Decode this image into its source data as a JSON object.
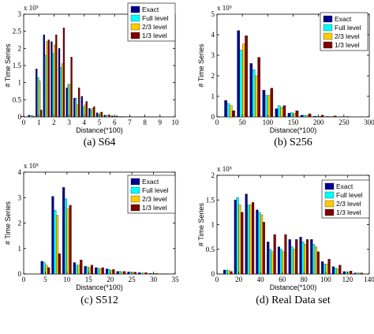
{
  "legend": [
    "Exact",
    "Full level",
    "2/3 level",
    "1/3 level"
  ],
  "colors": [
    "#00008f",
    "#00ffff",
    "#ffcc00",
    "#800000"
  ],
  "footer_text": "",
  "chart_data": [
    {
      "type": "bar",
      "caption": "(a) S64",
      "xlabel": "Distance(*100)",
      "ylabel": "# Time Series",
      "exponent": "x 10⁵",
      "xlim": [
        0,
        10
      ],
      "ylim": [
        0,
        3
      ],
      "xticks": [
        0,
        1,
        2,
        3,
        4,
        5,
        6,
        7,
        8,
        9,
        10
      ],
      "yticks": [
        0,
        0.5,
        1,
        1.5,
        2,
        2.5,
        3
      ],
      "x": [
        0,
        0.5,
        1,
        1.5,
        2,
        2.5,
        3,
        3.5,
        4,
        4.5,
        5,
        5.5,
        6,
        6.5,
        7,
        7.5,
        8,
        8.5,
        9,
        9.5
      ],
      "series": [
        {
          "name": "Exact",
          "values": [
            0.02,
            0.05,
            1.4,
            2.4,
            2.2,
            2.0,
            0.85,
            0.55,
            0.6,
            0.25,
            0.12,
            0.05,
            0.03,
            0.01,
            0.005,
            0.003,
            0.002,
            0.001,
            0.001,
            0
          ]
        },
        {
          "name": "Full level",
          "values": [
            0.01,
            0.04,
            1.15,
            1.8,
            1.85,
            1.45,
            0.95,
            0.55,
            0.3,
            0.2,
            0.08,
            0.04,
            0.02,
            0.01,
            0.005,
            0.003,
            0.002,
            0.001,
            0.001,
            0
          ]
        },
        {
          "name": "2/3 level",
          "values": [
            0.01,
            0.04,
            1.05,
            2.2,
            2.1,
            1.55,
            0.95,
            0.35,
            0.35,
            0.25,
            0.12,
            0.05,
            0.02,
            0.01,
            0.005,
            0.003,
            0.002,
            0.001,
            0.001,
            0
          ]
        },
        {
          "name": "1/3 level",
          "values": [
            0,
            0.02,
            0.2,
            2.25,
            2.4,
            2.6,
            1.75,
            0.85,
            0.45,
            0.3,
            0.14,
            0.06,
            0.03,
            0.01,
            0.005,
            0.003,
            0.002,
            0.001,
            0.001,
            0
          ]
        }
      ]
    },
    {
      "type": "bar",
      "caption": "(b) S256",
      "xlabel": "Distance(*100)",
      "ylabel": "# Time Series",
      "exponent": "x 10⁵",
      "xlim": [
        0,
        300
      ],
      "ylim": [
        0,
        5
      ],
      "xticks": [
        0,
        50,
        100,
        150,
        200,
        250,
        300
      ],
      "yticks": [
        0,
        1,
        2,
        3,
        4,
        5
      ],
      "x": [
        25,
        50,
        75,
        100,
        125,
        150,
        175,
        200,
        225,
        250,
        275
      ],
      "series": [
        {
          "name": "Exact",
          "values": [
            0.8,
            4.2,
            2.6,
            1.3,
            0.4,
            0.18,
            0.08,
            0.03,
            0.02,
            0.01,
            0
          ]
        },
        {
          "name": "Full level",
          "values": [
            0.65,
            3.25,
            2.3,
            1.05,
            0.55,
            0.2,
            0.08,
            0.03,
            0.02,
            0.01,
            0
          ]
        },
        {
          "name": "2/3 level",
          "values": [
            0.55,
            3.55,
            2.0,
            1.05,
            0.45,
            0.18,
            0.07,
            0.03,
            0.02,
            0.01,
            0
          ]
        },
        {
          "name": "1/3 level",
          "values": [
            0.3,
            3.95,
            2.9,
            1.4,
            0.55,
            0.3,
            0.15,
            0.08,
            0.05,
            0.02,
            0
          ]
        }
      ]
    },
    {
      "type": "bar",
      "caption": "(c) S512",
      "xlabel": "Distance(*100)",
      "ylabel": "# Time Series",
      "exponent": "x 10⁵",
      "xlim": [
        0,
        35
      ],
      "ylim": [
        0,
        4
      ],
      "xticks": [
        0,
        5,
        10,
        15,
        20,
        25,
        30,
        35
      ],
      "yticks": [
        0,
        1,
        2,
        3,
        4
      ],
      "x": [
        5,
        7.5,
        10,
        12.5,
        15,
        17.5,
        20,
        22.5,
        25,
        27.5,
        30,
        32.5
      ],
      "series": [
        {
          "name": "Exact",
          "values": [
            0.5,
            3.05,
            3.4,
            0.45,
            0.3,
            0.25,
            0.2,
            0.1,
            0.08,
            0.05,
            0.02,
            0.01
          ]
        },
        {
          "name": "Full level",
          "values": [
            0.45,
            2.5,
            2.95,
            0.35,
            0.28,
            0.22,
            0.18,
            0.1,
            0.07,
            0.04,
            0.02,
            0.01
          ]
        },
        {
          "name": "2/3 level",
          "values": [
            0.35,
            2.3,
            2.55,
            0.35,
            0.25,
            0.2,
            0.15,
            0.08,
            0.06,
            0.04,
            0.02,
            0.01
          ]
        },
        {
          "name": "1/3 level",
          "values": [
            0.25,
            0.8,
            2.7,
            0.55,
            0.35,
            0.25,
            0.18,
            0.1,
            0.07,
            0.05,
            0.02,
            0.01
          ]
        }
      ]
    },
    {
      "type": "bar",
      "caption": "(d) Real Data set",
      "xlabel": "Distance(*100)",
      "ylabel": "# Time Series",
      "exponent": "x 10⁵",
      "xlim": [
        0,
        140
      ],
      "ylim": [
        0,
        2
      ],
      "xticks": [
        0,
        20,
        40,
        60,
        80,
        100,
        120,
        140
      ],
      "yticks": [
        0,
        0.5,
        1,
        1.5,
        2
      ],
      "x": [
        10,
        20,
        30,
        40,
        50,
        60,
        70,
        80,
        90,
        100,
        110,
        120,
        130
      ],
      "series": [
        {
          "name": "Exact",
          "values": [
            0.08,
            1.5,
            1.62,
            1.3,
            0.65,
            0.55,
            0.7,
            0.75,
            0.7,
            0.25,
            0.15,
            0.05,
            0.02
          ]
        },
        {
          "name": "Full level",
          "values": [
            0.08,
            1.55,
            1.4,
            1.25,
            0.5,
            0.5,
            0.55,
            0.65,
            0.6,
            0.2,
            0.12,
            0.04,
            0.02
          ]
        },
        {
          "name": "2/3 level",
          "values": [
            0.07,
            1.4,
            1.4,
            1.2,
            0.45,
            0.45,
            0.5,
            0.6,
            0.55,
            0.2,
            0.1,
            0.04,
            0.02
          ]
        },
        {
          "name": "1/3 level",
          "values": [
            0.05,
            1.25,
            1.45,
            1.05,
            0.8,
            0.8,
            0.7,
            0.7,
            0.45,
            0.3,
            0.18,
            0.06,
            0.02
          ]
        }
      ]
    }
  ]
}
